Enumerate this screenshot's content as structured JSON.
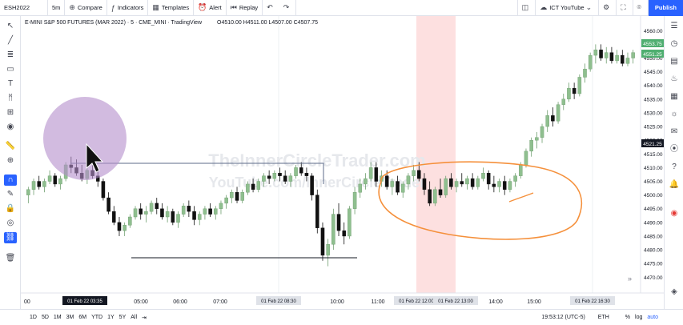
{
  "header": {
    "symbol": "ESH2022",
    "interval": "5m",
    "compare": "Compare",
    "indicators": "Indicators",
    "templates": "Templates",
    "alert": "Alert",
    "replay": "Replay",
    "layout_name": "ICT YouTube",
    "publish": "Publish"
  },
  "legend": {
    "title": "E-MINI S&P 500 FUTURES (MAR 2022) · 5 · CME_MINI · TradingView",
    "ohlc": "O4510.00 H4511.00 L4507.00 C4507.75"
  },
  "watermark": {
    "line1": "TheInnerCircleTrader.com",
    "line2": "YouTube.com/InnerCircleTrader"
  },
  "price_axis": {
    "ticks": [
      "4560.00",
      "4555.00",
      "4550.00",
      "4545.00",
      "4540.00",
      "4535.00",
      "4530.00",
      "4525.00",
      "4520.00",
      "4515.00",
      "4510.00",
      "4505.00",
      "4500.00",
      "4495.00",
      "4490.00",
      "4485.00",
      "4480.00",
      "4475.00",
      "4470.00"
    ],
    "badge_top": "4553.75",
    "badge_mid": "4551.25",
    "badge_cross": "4521.25"
  },
  "time_axis": {
    "ticks": [
      "00",
      "05:00",
      "06:00",
      "07:00",
      "10:00",
      "11:00",
      "14:00",
      "15:00"
    ],
    "badges": [
      "01 Feb 22  03:35",
      "01 Feb 22  08:30",
      "01 Feb 22  12:00",
      "01 Feb 22  13:00",
      "01 Feb 22  16:30"
    ]
  },
  "bottom": {
    "ranges": [
      "1D",
      "5D",
      "1M",
      "3M",
      "6M",
      "YTD",
      "1Y",
      "5Y",
      "All"
    ],
    "clock": "19:53:12 (UTC-5)",
    "session": "ETH",
    "pct": "%",
    "log": "log",
    "auto": "auto"
  },
  "chart_data": {
    "type": "candlestick",
    "ylim": [
      4466,
      4563
    ],
    "candle_colors": {
      "up": "#8fbf8f",
      "down": "#111111"
    },
    "ohlc": [
      [
        4500,
        4503,
        4497,
        4502
      ],
      [
        4502,
        4506,
        4500,
        4505
      ],
      [
        4505,
        4507,
        4502,
        4503
      ],
      [
        4503,
        4506,
        4501,
        4505
      ],
      [
        4505,
        4509,
        4504,
        4507
      ],
      [
        4507,
        4508,
        4503,
        4504
      ],
      [
        4504,
        4507,
        4502,
        4506
      ],
      [
        4506,
        4512,
        4505,
        4511
      ],
      [
        4511,
        4514,
        4508,
        4510
      ],
      [
        4510,
        4513,
        4507,
        4508
      ],
      [
        4508,
        4511,
        4505,
        4506
      ],
      [
        4506,
        4510,
        4504,
        4509
      ],
      [
        4509,
        4511,
        4506,
        4507
      ],
      [
        4507,
        4509,
        4503,
        4505
      ],
      [
        4505,
        4506,
        4498,
        4499
      ],
      [
        4499,
        4501,
        4493,
        4494
      ],
      [
        4494,
        4496,
        4489,
        4490
      ],
      [
        4490,
        4492,
        4485,
        4487
      ],
      [
        4487,
        4490,
        4485,
        4489
      ],
      [
        4489,
        4493,
        4488,
        4492
      ],
      [
        4492,
        4496,
        4491,
        4495
      ],
      [
        4495,
        4497,
        4491,
        4493
      ],
      [
        4493,
        4496,
        4490,
        4494
      ],
      [
        4494,
        4498,
        4493,
        4497
      ],
      [
        4497,
        4499,
        4493,
        4495
      ],
      [
        4495,
        4497,
        4491,
        4492
      ],
      [
        4492,
        4496,
        4490,
        4494
      ],
      [
        4494,
        4495,
        4489,
        4490
      ],
      [
        4490,
        4494,
        4488,
        4493
      ],
      [
        4493,
        4497,
        4492,
        4496
      ],
      [
        4496,
        4498,
        4492,
        4494
      ],
      [
        4494,
        4496,
        4489,
        4491
      ],
      [
        4491,
        4494,
        4489,
        4493
      ],
      [
        4493,
        4496,
        4491,
        4495
      ],
      [
        4495,
        4497,
        4492,
        4493
      ],
      [
        4493,
        4496,
        4491,
        4495
      ],
      [
        4495,
        4498,
        4493,
        4497
      ],
      [
        4497,
        4500,
        4495,
        4499
      ],
      [
        4499,
        4502,
        4497,
        4501
      ],
      [
        4501,
        4503,
        4497,
        4498
      ],
      [
        4498,
        4502,
        4497,
        4501
      ],
      [
        4501,
        4505,
        4500,
        4504
      ],
      [
        4504,
        4506,
        4501,
        4502
      ],
      [
        4502,
        4506,
        4501,
        4505
      ],
      [
        4505,
        4508,
        4503,
        4507
      ],
      [
        4507,
        4509,
        4504,
        4506
      ],
      [
        4506,
        4509,
        4505,
        4508
      ],
      [
        4508,
        4510,
        4505,
        4507
      ],
      [
        4507,
        4509,
        4504,
        4505
      ],
      [
        4505,
        4508,
        4503,
        4507
      ],
      [
        4507,
        4511,
        4506,
        4510
      ],
      [
        4510,
        4512,
        4507,
        4508
      ],
      [
        4508,
        4510,
        4505,
        4507
      ],
      [
        4507,
        4508,
        4498,
        4500
      ],
      [
        4500,
        4502,
        4486,
        4488
      ],
      [
        4488,
        4490,
        4476,
        4478
      ],
      [
        4478,
        4484,
        4474,
        4482
      ],
      [
        4482,
        4495,
        4480,
        4493
      ],
      [
        4493,
        4497,
        4485,
        4487
      ],
      [
        4487,
        4490,
        4482,
        4485
      ],
      [
        4485,
        4496,
        4484,
        4495
      ],
      [
        4495,
        4503,
        4493,
        4501
      ],
      [
        4501,
        4506,
        4499,
        4504
      ],
      [
        4504,
        4508,
        4502,
        4506
      ],
      [
        4506,
        4512,
        4505,
        4510
      ],
      [
        4510,
        4512,
        4503,
        4505
      ],
      [
        4505,
        4509,
        4503,
        4507
      ],
      [
        4507,
        4509,
        4502,
        4503
      ],
      [
        4503,
        4506,
        4500,
        4505
      ],
      [
        4505,
        4507,
        4500,
        4501
      ],
      [
        4501,
        4505,
        4499,
        4504
      ],
      [
        4504,
        4508,
        4502,
        4507
      ],
      [
        4507,
        4511,
        4505,
        4509
      ],
      [
        4509,
        4512,
        4505,
        4506
      ],
      [
        4506,
        4508,
        4500,
        4502
      ],
      [
        4502,
        4505,
        4496,
        4497
      ],
      [
        4497,
        4503,
        4496,
        4502
      ],
      [
        4502,
        4506,
        4499,
        4500
      ],
      [
        4500,
        4507,
        4499,
        4506
      ],
      [
        4506,
        4508,
        4502,
        4503
      ],
      [
        4503,
        4506,
        4501,
        4505
      ],
      [
        4505,
        4508,
        4503,
        4504
      ],
      [
        4504,
        4507,
        4502,
        4506
      ],
      [
        4506,
        4508,
        4502,
        4503
      ],
      [
        4503,
        4507,
        4502,
        4506
      ],
      [
        4506,
        4510,
        4505,
        4508
      ],
      [
        4508,
        4509,
        4502,
        4504
      ],
      [
        4504,
        4507,
        4501,
        4503
      ],
      [
        4503,
        4506,
        4501,
        4505
      ],
      [
        4505,
        4507,
        4500,
        4502
      ],
      [
        4502,
        4506,
        4501,
        4505
      ],
      [
        4505,
        4508,
        4503,
        4507
      ],
      [
        4507,
        4512,
        4506,
        4511
      ],
      [
        4511,
        4517,
        4510,
        4516
      ],
      [
        4516,
        4521,
        4514,
        4520
      ],
      [
        4520,
        4523,
        4517,
        4521
      ],
      [
        4521,
        4526,
        4519,
        4525
      ],
      [
        4525,
        4531,
        4523,
        4529
      ],
      [
        4529,
        4532,
        4525,
        4527
      ],
      [
        4527,
        4534,
        4526,
        4533
      ],
      [
        4533,
        4537,
        4531,
        4535
      ],
      [
        4535,
        4541,
        4534,
        4539
      ],
      [
        4539,
        4541,
        4535,
        4537
      ],
      [
        4537,
        4544,
        4536,
        4543
      ],
      [
        4543,
        4548,
        4541,
        4546
      ],
      [
        4546,
        4552,
        4545,
        4551
      ],
      [
        4551,
        4555,
        4548,
        4553
      ],
      [
        4553,
        4555,
        4549,
        4550
      ],
      [
        4550,
        4554,
        4548,
        4552
      ],
      [
        4552,
        4554,
        4548,
        4549
      ],
      [
        4549,
        4553,
        4548,
        4551
      ],
      [
        4551,
        4553,
        4547,
        4548
      ],
      [
        4548,
        4552,
        4547,
        4550
      ],
      [
        4550,
        4553,
        4548,
        4552
      ]
    ]
  }
}
